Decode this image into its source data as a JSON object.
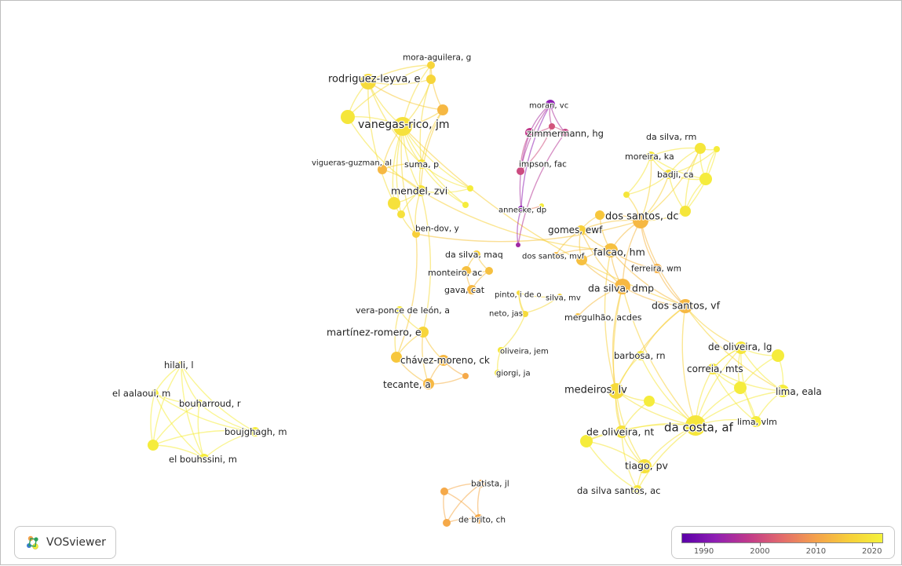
{
  "app": {
    "logo_text": "VOSviewer"
  },
  "colors": {
    "background": "#ffffff",
    "scale": [
      "#5a00a8",
      "#8f1fb3",
      "#c13a8a",
      "#e36c6c",
      "#f4a14c",
      "#f7cf3a",
      "#f4f23c"
    ],
    "scale_min": 1986,
    "scale_max": 2022
  },
  "legend": {
    "ticks": [
      {
        "label": "1990",
        "value": 1990
      },
      {
        "label": "2000",
        "value": 2000
      },
      {
        "label": "2010",
        "value": 2010
      },
      {
        "label": "2020",
        "value": 2020
      }
    ]
  },
  "nodes": [
    {
      "id": "mora_aguilera",
      "label": "mora-aguilera, g",
      "year": 2017
    },
    {
      "id": "rodriguez_leyva",
      "label": "rodriguez-leyva, e",
      "year": 2018
    },
    {
      "id": "vanegas_rico",
      "label": "vanegas-rico, jm",
      "year": 2019
    },
    {
      "id": "vigueras",
      "label": "vigueras-guzman, al",
      "year": 2013
    },
    {
      "id": "suma",
      "label": "suma, p",
      "year": 2019
    },
    {
      "id": "mendel",
      "label": "mendel, zvi",
      "year": 2019
    },
    {
      "id": "ben_dov",
      "label": "ben-dov, y",
      "year": 2016
    },
    {
      "id": "u_a1",
      "label": "",
      "year": 2017
    },
    {
      "id": "u_a2",
      "label": "",
      "year": 2013
    },
    {
      "id": "u_a3",
      "label": "",
      "year": 2020
    },
    {
      "id": "u_a4",
      "label": "",
      "year": 2019
    },
    {
      "id": "u_a5",
      "label": "",
      "year": 2021
    },
    {
      "id": "u_a6",
      "label": "",
      "year": 2021
    },
    {
      "id": "u_a7",
      "label": "",
      "year": 2019
    },
    {
      "id": "moran",
      "label": "moran, vc",
      "year": 1992
    },
    {
      "id": "zimmermann",
      "label": "zimmermann, hg",
      "year": 1998
    },
    {
      "id": "impson",
      "label": "impson, fac",
      "year": 2000
    },
    {
      "id": "annecke",
      "label": "annecke, dp",
      "year": 1992
    },
    {
      "id": "u_p1",
      "label": "",
      "year": 1999
    },
    {
      "id": "u_p2",
      "label": "",
      "year": 2001
    },
    {
      "id": "u_p3",
      "label": "",
      "year": 1994
    },
    {
      "id": "da_silva_rm",
      "label": "da silva, rm",
      "year": 2020
    },
    {
      "id": "moreira_ka",
      "label": "moreira, ka",
      "year": 2020
    },
    {
      "id": "badji",
      "label": "badji, ca",
      "year": 2019
    },
    {
      "id": "dos_santos_dc",
      "label": "dos santos, dc",
      "year": 2013
    },
    {
      "id": "gomes_ewf",
      "label": "gomes, ewf",
      "year": 2016
    },
    {
      "id": "dos_santos_mvf",
      "label": "dos santos, mvf",
      "year": 2013
    },
    {
      "id": "falcao",
      "label": "falcao, hm",
      "year": 2014
    },
    {
      "id": "ferreira_wm",
      "label": "ferreira, wm",
      "year": 2012
    },
    {
      "id": "da_silva_dmp",
      "label": "da silva, dmp",
      "year": 2013
    },
    {
      "id": "dos_santos_vf",
      "label": "dos santos, vf",
      "year": 2013
    },
    {
      "id": "u_b1",
      "label": "",
      "year": 2015
    },
    {
      "id": "u_b2",
      "label": "",
      "year": 2021
    },
    {
      "id": "u_b3",
      "label": "",
      "year": 2020
    },
    {
      "id": "u_b4",
      "label": "",
      "year": 2021
    },
    {
      "id": "u_b5",
      "label": "",
      "year": 2020
    },
    {
      "id": "u_b6",
      "label": "",
      "year": 2014
    },
    {
      "id": "da_silva_maq",
      "label": "da silva, maq",
      "year": 2016
    },
    {
      "id": "monteiro",
      "label": "monteiro, ac",
      "year": 2014
    },
    {
      "id": "gava",
      "label": "gava, cat",
      "year": 2013
    },
    {
      "id": "pinto",
      "label": "pinto, i de o",
      "year": 2018
    },
    {
      "id": "silva_mv",
      "label": "silva, mv",
      "year": 2017
    },
    {
      "id": "neto",
      "label": "neto, jas",
      "year": 2018
    },
    {
      "id": "mergulhao",
      "label": "mergulhão, acdes",
      "year": 2014
    },
    {
      "id": "u_m1",
      "label": "",
      "year": 2014
    },
    {
      "id": "u_m2",
      "label": "",
      "year": 2021
    },
    {
      "id": "vera_ponce",
      "label": "vera-ponce de león, a",
      "year": 2020
    },
    {
      "id": "martinez",
      "label": "martínez-romero, e",
      "year": 2017
    },
    {
      "id": "chavez",
      "label": "chávez-moreno, ck",
      "year": 2013
    },
    {
      "id": "tecante",
      "label": "tecante, a",
      "year": 2013
    },
    {
      "id": "oliveira_jem",
      "label": "oliveira, jem",
      "year": 2020
    },
    {
      "id": "giorgi",
      "label": "giorgi, ja",
      "year": 2020
    },
    {
      "id": "u_c1",
      "label": "",
      "year": 2015
    },
    {
      "id": "u_c2",
      "label": "",
      "year": 2018
    },
    {
      "id": "u_c3",
      "label": "",
      "year": 2011
    },
    {
      "id": "hilali",
      "label": "hilali, l",
      "year": 2021
    },
    {
      "id": "el_aalaoui",
      "label": "el aalaoui, m",
      "year": 2021
    },
    {
      "id": "bouharroud",
      "label": "bouharroud, r",
      "year": 2021
    },
    {
      "id": "boujghagh",
      "label": "boujghagh, m",
      "year": 2021
    },
    {
      "id": "el_bouhssini",
      "label": "el bouhssini, m",
      "year": 2021
    },
    {
      "id": "u_h1",
      "label": "",
      "year": 2021
    },
    {
      "id": "de_oliveira_lg",
      "label": "de oliveira, lg",
      "year": 2020
    },
    {
      "id": "correia",
      "label": "correia, mts",
      "year": 2020
    },
    {
      "id": "lima_eala",
      "label": "lima, eala",
      "year": 2021
    },
    {
      "id": "lima_vlm",
      "label": "lima, vlm",
      "year": 2021
    },
    {
      "id": "barbosa",
      "label": "barbosa, rn",
      "year": 2020
    },
    {
      "id": "medeiros",
      "label": "medeiros, lv",
      "year": 2018
    },
    {
      "id": "da_costa",
      "label": "da costa, af",
      "year": 2020
    },
    {
      "id": "de_oliveira_nt",
      "label": "de oliveira, nt",
      "year": 2019
    },
    {
      "id": "tiago",
      "label": "tiago, pv",
      "year": 2019
    },
    {
      "id": "da_silva_santos",
      "label": "da silva santos, ac",
      "year": 2020
    },
    {
      "id": "u_d1",
      "label": "",
      "year": 2021
    },
    {
      "id": "u_d2",
      "label": "",
      "year": 2021
    },
    {
      "id": "u_d3",
      "label": "",
      "year": 2021
    },
    {
      "id": "u_d4",
      "label": "",
      "year": 2021
    },
    {
      "id": "batista",
      "label": "batista, jl",
      "year": 2011
    },
    {
      "id": "de_brito",
      "label": "de brito, ch",
      "year": 2011
    },
    {
      "id": "u_e1",
      "label": "",
      "year": 2011
    },
    {
      "id": "u_e2",
      "label": "",
      "year": 2011
    }
  ],
  "links": [
    [
      "mora_aguilera",
      "rodriguez_leyva"
    ],
    [
      "mora_aguilera",
      "vanegas_rico"
    ],
    [
      "mora_aguilera",
      "u_a1"
    ],
    [
      "mora_aguilera",
      "u_a2"
    ],
    [
      "mora_aguilera",
      "u_a3"
    ],
    [
      "rodriguez_leyva",
      "vanegas_rico"
    ],
    [
      "rodriguez_leyva",
      "u_a1"
    ],
    [
      "rodriguez_leyva",
      "u_a2"
    ],
    [
      "rodriguez_leyva",
      "u_a3"
    ],
    [
      "rodriguez_leyva",
      "suma"
    ],
    [
      "rodriguez_leyva",
      "u_a4"
    ],
    [
      "vanegas_rico",
      "u_a1"
    ],
    [
      "vanegas_rico",
      "u_a2"
    ],
    [
      "vanegas_rico",
      "u_a3"
    ],
    [
      "vanegas_rico",
      "suma"
    ],
    [
      "vanegas_rico",
      "mendel"
    ],
    [
      "vanegas_rico",
      "vigueras"
    ],
    [
      "vanegas_rico",
      "u_a4"
    ],
    [
      "vanegas_rico",
      "u_a5"
    ],
    [
      "vanegas_rico",
      "u_a6"
    ],
    [
      "vanegas_rico",
      "ben_dov"
    ],
    [
      "vanegas_rico",
      "u_a7"
    ],
    [
      "u_a1",
      "suma"
    ],
    [
      "u_a2",
      "suma"
    ],
    [
      "u_a2",
      "mendel"
    ],
    [
      "u_a3",
      "mendel"
    ],
    [
      "u_a4",
      "mendel"
    ],
    [
      "u_a4",
      "u_a7"
    ],
    [
      "suma",
      "mendel"
    ],
    [
      "suma",
      "vigueras"
    ],
    [
      "suma",
      "u_a5"
    ],
    [
      "suma",
      "u_a6"
    ],
    [
      "mendel",
      "u_a7"
    ],
    [
      "mendel",
      "ben_dov"
    ],
    [
      "mendel",
      "u_a5"
    ],
    [
      "mendel",
      "vigueras"
    ],
    [
      "u_a7",
      "ben_dov"
    ],
    [
      "mendel",
      "falcao"
    ],
    [
      "vanegas_rico",
      "dos_santos_vf"
    ],
    [
      "ben_dov",
      "dos_santos_dc"
    ],
    [
      "moran",
      "zimmermann"
    ],
    [
      "moran",
      "impson"
    ],
    [
      "moran",
      "u_p1"
    ],
    [
      "moran",
      "u_p2"
    ],
    [
      "moran",
      "annecke"
    ],
    [
      "zimmermann",
      "impson"
    ],
    [
      "zimmermann",
      "u_p1"
    ],
    [
      "zimmermann",
      "u_p2"
    ],
    [
      "zimmermann",
      "annecke"
    ],
    [
      "impson",
      "u_p2"
    ],
    [
      "u_p1",
      "u_p2"
    ],
    [
      "annecke",
      "u_p3"
    ],
    [
      "u_p1",
      "u_p3"
    ],
    [
      "annecke",
      "u_m2"
    ],
    [
      "dos_santos_dc",
      "gomes_ewf"
    ],
    [
      "dos_santos_dc",
      "falcao"
    ],
    [
      "dos_santos_dc",
      "ferreira_wm"
    ],
    [
      "dos_santos_dc",
      "da_silva_dmp"
    ],
    [
      "dos_santos_dc",
      "dos_santos_vf"
    ],
    [
      "dos_santos_dc",
      "u_b1"
    ],
    [
      "dos_santos_dc",
      "u_b5"
    ],
    [
      "dos_santos_dc",
      "badji"
    ],
    [
      "dos_santos_dc",
      "moreira_ka"
    ],
    [
      "dos_santos_dc",
      "da_silva_rm"
    ],
    [
      "dos_santos_dc",
      "u_b3"
    ],
    [
      "gomes_ewf",
      "falcao"
    ],
    [
      "gomes_ewf",
      "da_silva_dmp"
    ],
    [
      "gomes_ewf",
      "u_b6"
    ],
    [
      "gomes_ewf",
      "dos_santos_mvf"
    ],
    [
      "falcao",
      "u_b6"
    ],
    [
      "falcao",
      "ferreira_wm"
    ],
    [
      "falcao",
      "da_silva_dmp"
    ],
    [
      "falcao",
      "dos_santos_vf"
    ],
    [
      "falcao",
      "dos_santos_mvf"
    ],
    [
      "u_b6",
      "da_silva_dmp"
    ],
    [
      "ferreira_wm",
      "dos_santos_vf"
    ],
    [
      "da_silva_dmp",
      "dos_santos_vf"
    ],
    [
      "da_silva_dmp",
      "mergulhao"
    ],
    [
      "u_b1",
      "falcao"
    ],
    [
      "u_b1",
      "gomes_ewf"
    ],
    [
      "da_silva_rm",
      "moreira_ka"
    ],
    [
      "da_silva_rm",
      "badji"
    ],
    [
      "da_silva_rm",
      "u_b2"
    ],
    [
      "da_silva_rm",
      "u_b3"
    ],
    [
      "da_silva_rm",
      "u_b4"
    ],
    [
      "moreira_ka",
      "badji"
    ],
    [
      "moreira_ka",
      "u_b2"
    ],
    [
      "badji",
      "u_b2"
    ],
    [
      "badji",
      "u_b3"
    ],
    [
      "badji",
      "u_b4"
    ],
    [
      "u_b2",
      "u_b3"
    ],
    [
      "u_b3",
      "u_b4"
    ],
    [
      "u_b5",
      "badji"
    ],
    [
      "u_b5",
      "moreira_ka"
    ],
    [
      "u_b4",
      "u_b2"
    ],
    [
      "dos_santos_vf",
      "da_costa"
    ],
    [
      "dos_santos_vf",
      "lima_eala"
    ],
    [
      "dos_santos_vf",
      "de_oliveira_lg"
    ],
    [
      "dos_santos_vf",
      "medeiros"
    ],
    [
      "dos_santos_vf",
      "barbosa"
    ],
    [
      "da_silva_dmp",
      "medeiros"
    ],
    [
      "da_silva_dmp",
      "da_costa"
    ],
    [
      "da_silva_dmp",
      "de_oliveira_nt"
    ],
    [
      "falcao",
      "medeiros"
    ],
    [
      "de_oliveira_lg",
      "correia"
    ],
    [
      "de_oliveira_lg",
      "lima_eala"
    ],
    [
      "de_oliveira_lg",
      "u_d1"
    ],
    [
      "de_oliveira_lg",
      "u_d2"
    ],
    [
      "de_oliveira_lg",
      "da_costa"
    ],
    [
      "de_oliveira_lg",
      "lima_vlm"
    ],
    [
      "correia",
      "lima_eala"
    ],
    [
      "correia",
      "u_d2"
    ],
    [
      "correia",
      "da_costa"
    ],
    [
      "correia",
      "lima_vlm"
    ],
    [
      "lima_eala",
      "lima_vlm"
    ],
    [
      "lima_eala",
      "u_d1"
    ],
    [
      "lima_eala",
      "da_costa"
    ],
    [
      "u_d1",
      "u_d2"
    ],
    [
      "u_d2",
      "da_costa"
    ],
    [
      "lima_vlm",
      "da_costa"
    ],
    [
      "lima_vlm",
      "u_d2"
    ],
    [
      "barbosa",
      "medeiros"
    ],
    [
      "barbosa",
      "da_costa"
    ],
    [
      "medeiros",
      "da_costa"
    ],
    [
      "medeiros",
      "u_d3"
    ],
    [
      "medeiros",
      "de_oliveira_nt"
    ],
    [
      "medeiros",
      "tiago"
    ],
    [
      "da_costa",
      "u_d3"
    ],
    [
      "da_costa",
      "de_oliveira_nt"
    ],
    [
      "da_costa",
      "tiago"
    ],
    [
      "da_costa",
      "da_silva_santos"
    ],
    [
      "da_costa",
      "u_d4"
    ],
    [
      "u_d3",
      "de_oliveira_nt"
    ],
    [
      "de_oliveira_nt",
      "tiago"
    ],
    [
      "de_oliveira_nt",
      "u_d4"
    ],
    [
      "de_oliveira_nt",
      "da_silva_santos"
    ],
    [
      "tiago",
      "da_silva_santos"
    ],
    [
      "tiago",
      "u_d4"
    ],
    [
      "u_d4",
      "da_silva_santos"
    ],
    [
      "de_oliveira_lg",
      "correia"
    ],
    [
      "da_silva_maq",
      "monteiro"
    ],
    [
      "da_silva_maq",
      "u_m1"
    ],
    [
      "monteiro",
      "u_m1"
    ],
    [
      "monteiro",
      "gava"
    ],
    [
      "u_m1",
      "gava"
    ],
    [
      "pinto",
      "neto"
    ],
    [
      "pinto",
      "silva_mv"
    ],
    [
      "neto",
      "silva_mv"
    ],
    [
      "neto",
      "u_c2"
    ],
    [
      "pinto",
      "u_c2"
    ],
    [
      "vera_ponce",
      "martinez"
    ],
    [
      "vera_ponce",
      "u_c1"
    ],
    [
      "martinez",
      "u_c1"
    ],
    [
      "martinez",
      "chavez"
    ],
    [
      "martinez",
      "tecante"
    ],
    [
      "u_c1",
      "chavez"
    ],
    [
      "u_c1",
      "tecante"
    ],
    [
      "chavez",
      "tecante"
    ],
    [
      "chavez",
      "u_c3"
    ],
    [
      "tecante",
      "u_c3"
    ],
    [
      "martinez",
      "mendel"
    ],
    [
      "u_c1",
      "ben_dov"
    ],
    [
      "oliveira_jem",
      "giorgi"
    ],
    [
      "oliveira_jem",
      "u_c2"
    ],
    [
      "hilali",
      "el_aalaoui"
    ],
    [
      "hilali",
      "bouharroud"
    ],
    [
      "hilali",
      "boujghagh"
    ],
    [
      "hilali",
      "el_bouhssini"
    ],
    [
      "hilali",
      "u_h1"
    ],
    [
      "el_aalaoui",
      "bouharroud"
    ],
    [
      "el_aalaoui",
      "boujghagh"
    ],
    [
      "el_aalaoui",
      "el_bouhssini"
    ],
    [
      "el_aalaoui",
      "u_h1"
    ],
    [
      "bouharroud",
      "boujghagh"
    ],
    [
      "bouharroud",
      "el_bouhssini"
    ],
    [
      "bouharroud",
      "u_h1"
    ],
    [
      "boujghagh",
      "el_bouhssini"
    ],
    [
      "boujghagh",
      "u_h1"
    ],
    [
      "el_bouhssini",
      "u_h1"
    ],
    [
      "batista",
      "de_brito"
    ],
    [
      "batista",
      "u_e1"
    ],
    [
      "batista",
      "u_e2"
    ],
    [
      "de_brito",
      "u_e1"
    ],
    [
      "de_brito",
      "u_e2"
    ],
    [
      "u_e1",
      "u_e2"
    ]
  ]
}
